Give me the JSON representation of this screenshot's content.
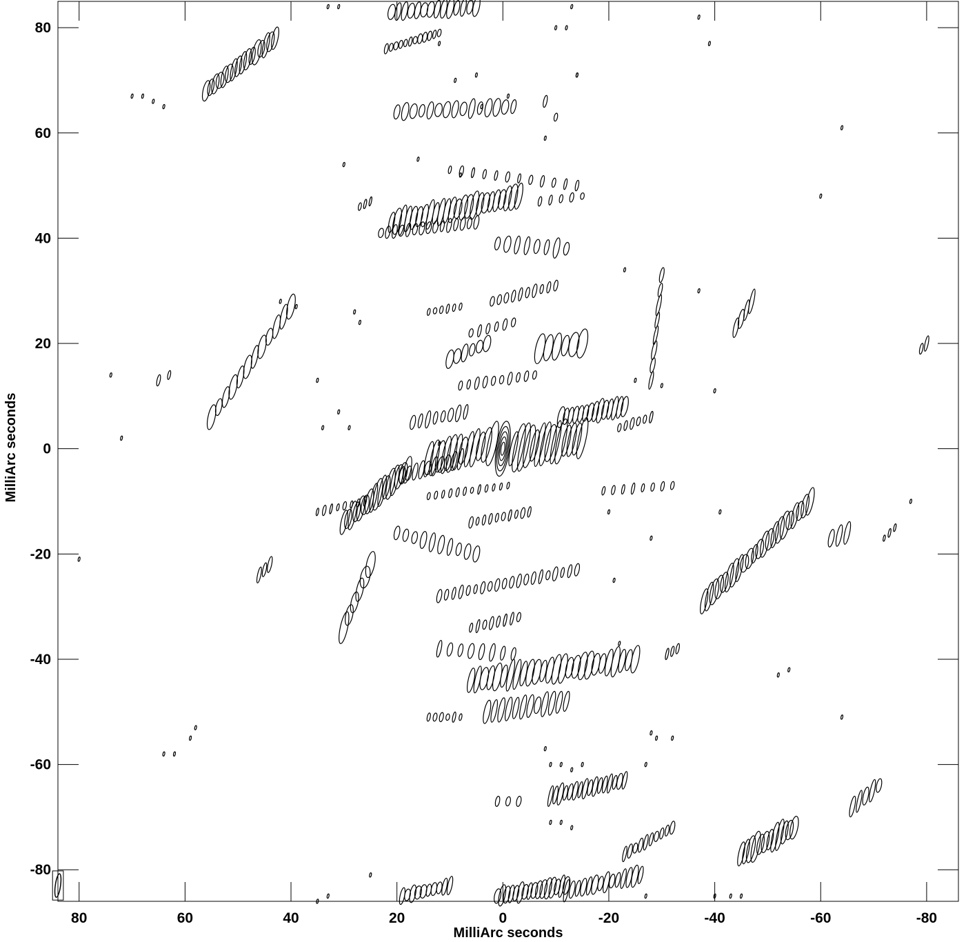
{
  "chart_data": {
    "type": "contour",
    "title": "",
    "xlabel": "MilliArc seconds",
    "ylabel": "MilliArc seconds",
    "xlim": [
      84,
      -86
    ],
    "ylim": [
      -86,
      85
    ],
    "x_ticks": [
      80,
      60,
      40,
      20,
      0,
      -20,
      -40,
      -60,
      -80
    ],
    "y_ticks": [
      80,
      60,
      40,
      20,
      0,
      -20,
      -40,
      -60,
      -80
    ],
    "x_tick_labels": [
      "80",
      "60",
      "40",
      "20",
      "0",
      "-20",
      "-40",
      "-60",
      "-80"
    ],
    "y_tick_labels": [
      "80",
      "60",
      "40",
      "20",
      "0",
      "-20",
      "-40",
      "-60",
      "-80"
    ],
    "grid": false,
    "line_color": "#000000",
    "background": "#ffffff",
    "beam": {
      "x": 84,
      "y": -83,
      "major": 4.5,
      "minor": 1.0
    },
    "core": {
      "x": 0,
      "y": 0,
      "levels": 5,
      "height": 10,
      "width": 2.2
    },
    "bands": [
      {
        "x1": 56,
        "y1": 68,
        "x2": 43,
        "y2": 78,
        "n": 16,
        "w": 1.2,
        "h": 4.0
      },
      {
        "x1": 21,
        "y1": 83,
        "x2": 5,
        "y2": 84,
        "n": 14,
        "w": 1.1,
        "h": 3.5
      },
      {
        "x1": 22,
        "y1": 76,
        "x2": 12,
        "y2": 79,
        "n": 12,
        "w": 0.7,
        "h": 1.6
      },
      {
        "x1": 20,
        "y1": 64,
        "x2": -2,
        "y2": 65,
        "n": 15,
        "w": 1.1,
        "h": 3.2
      },
      {
        "x1": 21,
        "y1": 43,
        "x2": -3,
        "y2": 48,
        "n": 24,
        "w": 1.2,
        "h": 5.0
      },
      {
        "x1": 23,
        "y1": 41,
        "x2": 5,
        "y2": 43,
        "n": 15,
        "w": 0.8,
        "h": 2.2
      },
      {
        "x1": 1,
        "y1": 39,
        "x2": -12,
        "y2": 38,
        "n": 8,
        "w": 1.0,
        "h": 3.2
      },
      {
        "x1": 2,
        "y1": 28,
        "x2": -10,
        "y2": 31,
        "n": 10,
        "w": 0.7,
        "h": 2.2
      },
      {
        "x1": 14,
        "y1": 26,
        "x2": 8,
        "y2": 27,
        "n": 6,
        "w": 0.6,
        "h": 1.5
      },
      {
        "x1": 6,
        "y1": 22,
        "x2": -2,
        "y2": 24,
        "n": 6,
        "w": 0.7,
        "h": 2.0
      },
      {
        "x1": 10,
        "y1": 17,
        "x2": 3,
        "y2": 20,
        "n": 6,
        "w": 1.1,
        "h": 3.0
      },
      {
        "x1": 8,
        "y1": 12,
        "x2": -6,
        "y2": 14,
        "n": 10,
        "w": 0.7,
        "h": 2.0
      },
      {
        "x1": -7,
        "y1": 19,
        "x2": -15,
        "y2": 20,
        "n": 6,
        "w": 1.5,
        "h": 5.0
      },
      {
        "x1": 17,
        "y1": 5,
        "x2": 7,
        "y2": 7,
        "n": 8,
        "w": 0.8,
        "h": 2.8
      },
      {
        "x1": 14,
        "y1": -2,
        "x2": 2,
        "y2": 1,
        "n": 12,
        "w": 1.4,
        "h": 7.0
      },
      {
        "x1": -2,
        "y1": 0,
        "x2": -15,
        "y2": 2,
        "n": 14,
        "w": 1.4,
        "h": 8.0
      },
      {
        "x1": -11,
        "y1": 6,
        "x2": -23,
        "y2": 8,
        "n": 14,
        "w": 1.0,
        "h": 4.0
      },
      {
        "x1": -22,
        "y1": 4,
        "x2": -28,
        "y2": 6,
        "n": 6,
        "w": 0.6,
        "h": 2.0
      },
      {
        "x1": 30,
        "y1": -14,
        "x2": 18,
        "y2": -4,
        "n": 16,
        "w": 1.2,
        "h": 5.0
      },
      {
        "x1": 19,
        "y1": -5,
        "x2": 8,
        "y2": -2,
        "n": 10,
        "w": 1.0,
        "h": 3.5
      },
      {
        "x1": 35,
        "y1": -12,
        "x2": 26,
        "y2": -10,
        "n": 8,
        "w": 0.5,
        "h": 1.8
      },
      {
        "x1": 20,
        "y1": -16,
        "x2": 5,
        "y2": -20,
        "n": 10,
        "w": 1.0,
        "h": 3.0
      },
      {
        "x1": 6,
        "y1": -14,
        "x2": -5,
        "y2": -12,
        "n": 10,
        "w": 0.6,
        "h": 1.8
      },
      {
        "x1": 14,
        "y1": -9,
        "x2": -1,
        "y2": -7,
        "n": 12,
        "w": 0.5,
        "h": 1.5
      },
      {
        "x1": -19,
        "y1": -8,
        "x2": -32,
        "y2": -7,
        "n": 8,
        "w": 0.6,
        "h": 2.0
      },
      {
        "x1": 12,
        "y1": -28,
        "x2": -14,
        "y2": -23,
        "n": 20,
        "w": 0.7,
        "h": 2.2
      },
      {
        "x1": 6,
        "y1": -34,
        "x2": -3,
        "y2": -32,
        "n": 8,
        "w": 0.6,
        "h": 2.2
      },
      {
        "x1": 12,
        "y1": -38,
        "x2": -2,
        "y2": -39,
        "n": 8,
        "w": 0.9,
        "h": 3.0
      },
      {
        "x1": 6,
        "y1": -44,
        "x2": -25,
        "y2": -40,
        "n": 26,
        "w": 1.2,
        "h": 5.0
      },
      {
        "x1": 3,
        "y1": -50,
        "x2": -12,
        "y2": -48,
        "n": 12,
        "w": 1.0,
        "h": 4.0
      },
      {
        "x1": 14,
        "y1": -51,
        "x2": 8,
        "y2": -51,
        "n": 6,
        "w": 0.6,
        "h": 1.6
      },
      {
        "x1": -9,
        "y1": -66,
        "x2": -23,
        "y2": -63,
        "n": 16,
        "w": 0.8,
        "h": 3.5
      },
      {
        "x1": 1,
        "y1": -67,
        "x2": -3,
        "y2": -67,
        "n": 3,
        "w": 0.7,
        "h": 2.0
      },
      {
        "x1": -23,
        "y1": -77,
        "x2": -32,
        "y2": -72,
        "n": 10,
        "w": 0.7,
        "h": 2.5
      },
      {
        "x1": -12,
        "y1": -84,
        "x2": -26,
        "y2": -81,
        "n": 14,
        "w": 0.9,
        "h": 3.5
      },
      {
        "x1": 1,
        "y1": -85,
        "x2": -12,
        "y2": -83,
        "n": 16,
        "w": 1.0,
        "h": 3.5
      },
      {
        "x1": 19,
        "y1": -85,
        "x2": 10,
        "y2": -83,
        "n": 10,
        "w": 1.0,
        "h": 3.0
      },
      {
        "x1": -38,
        "y1": -29,
        "x2": -58,
        "y2": -10,
        "n": 22,
        "w": 1.2,
        "h": 4.5
      },
      {
        "x1": -45,
        "y1": -77,
        "x2": -55,
        "y2": -72,
        "n": 12,
        "w": 1.2,
        "h": 5.0
      },
      {
        "x1": -66,
        "y1": -68,
        "x2": -71,
        "y2": -64,
        "n": 5,
        "w": 0.8,
        "h": 3.5
      },
      {
        "x1": 55,
        "y1": 6,
        "x2": 40,
        "y2": 27,
        "n": 12,
        "w": 1.2,
        "h": 4.0
      },
      {
        "x1": -44,
        "y1": 23,
        "x2": -47,
        "y2": 28,
        "n": 4,
        "w": 0.8,
        "h": 4.0
      },
      {
        "x1": -28,
        "y1": 13,
        "x2": -30,
        "y2": 33,
        "n": 8,
        "w": 0.7,
        "h": 3.5
      },
      {
        "x1": 30,
        "y1": -34,
        "x2": 25,
        "y2": -22,
        "n": 6,
        "w": 1.5,
        "h": 5.0
      },
      {
        "x1": -62,
        "y1": -17,
        "x2": -65,
        "y2": -16,
        "n": 3,
        "w": 0.8,
        "h": 4.0
      },
      {
        "x1": 46,
        "y1": -24,
        "x2": 44,
        "y2": -22,
        "n": 3,
        "w": 0.7,
        "h": 2.5
      },
      {
        "x1": -31,
        "y1": -39,
        "x2": -33,
        "y2": -38,
        "n": 3,
        "w": 0.5,
        "h": 1.8
      },
      {
        "x1": 65,
        "y1": 13,
        "x2": 63,
        "y2": 14,
        "n": 2,
        "w": 0.6,
        "h": 2.2
      },
      {
        "x1": -79,
        "y1": 19,
        "x2": -80,
        "y2": 20,
        "n": 2,
        "w": 0.7,
        "h": 2.5
      },
      {
        "x1": -72,
        "y1": -17,
        "x2": -74,
        "y2": -15,
        "n": 3,
        "w": 0.4,
        "h": 1.5
      },
      {
        "x1": 10,
        "y1": 53,
        "x2": -14,
        "y2": 50,
        "n": 12,
        "w": 0.6,
        "h": 1.8
      },
      {
        "x1": -7,
        "y1": 47,
        "x2": -15,
        "y2": 48,
        "n": 5,
        "w": 0.6,
        "h": 1.6
      },
      {
        "x1": 27,
        "y1": 46,
        "x2": 25,
        "y2": 47,
        "n": 3,
        "w": 0.5,
        "h": 1.6
      },
      {
        "x1": -8,
        "y1": 66,
        "x2": -10,
        "y2": 63,
        "n": 2,
        "w": 0.6,
        "h": 2.0
      }
    ],
    "dots": [
      [
        70,
        67
      ],
      [
        68,
        67
      ],
      [
        66,
        66
      ],
      [
        64,
        65
      ],
      [
        42,
        28
      ],
      [
        39,
        27
      ],
      [
        33,
        84
      ],
      [
        31,
        84
      ],
      [
        12,
        77
      ],
      [
        5,
        71
      ],
      [
        4,
        65
      ],
      [
        -1,
        67
      ],
      [
        -10,
        80
      ],
      [
        -12,
        80
      ],
      [
        -13,
        84
      ],
      [
        -14,
        71
      ],
      [
        -37,
        82
      ],
      [
        -39,
        77
      ],
      [
        -64,
        61
      ],
      [
        -60,
        48
      ],
      [
        -40,
        11
      ],
      [
        74,
        14
      ],
      [
        72,
        2
      ],
      [
        80,
        -21
      ],
      [
        58,
        -53
      ],
      [
        59,
        -55
      ],
      [
        64,
        -58
      ],
      [
        62,
        -58
      ],
      [
        35,
        13
      ],
      [
        34,
        4
      ],
      [
        31,
        7
      ],
      [
        29,
        4
      ],
      [
        -20,
        -12
      ],
      [
        -41,
        -12
      ],
      [
        -28,
        -17
      ],
      [
        -21,
        -25
      ],
      [
        -22,
        -37
      ],
      [
        -52,
        -43
      ],
      [
        -54,
        -42
      ],
      [
        -64,
        -51
      ],
      [
        -27,
        -60
      ],
      [
        -27,
        -85
      ],
      [
        -40,
        -85
      ],
      [
        -43,
        -85
      ],
      [
        -45,
        -85
      ],
      [
        -77,
        -10
      ],
      [
        30,
        54
      ],
      [
        16,
        55
      ],
      [
        8,
        52
      ],
      [
        28,
        26
      ],
      [
        27,
        24
      ],
      [
        12,
        1
      ],
      [
        -23,
        34
      ],
      [
        -37,
        30
      ],
      [
        -30,
        12
      ],
      [
        -25,
        13
      ],
      [
        -32,
        -55
      ],
      [
        -29,
        -55
      ],
      [
        -28,
        -54
      ],
      [
        -8,
        -57
      ],
      [
        -9,
        -60
      ],
      [
        -11,
        -60
      ],
      [
        -13,
        -61
      ],
      [
        -15,
        -60
      ],
      [
        -9,
        -71
      ],
      [
        -11,
        -71
      ],
      [
        -13,
        -72
      ],
      [
        33,
        -85
      ],
      [
        35,
        -86
      ],
      [
        25,
        -81
      ],
      [
        9,
        70
      ],
      [
        -14,
        71
      ],
      [
        -8,
        59
      ]
    ]
  }
}
